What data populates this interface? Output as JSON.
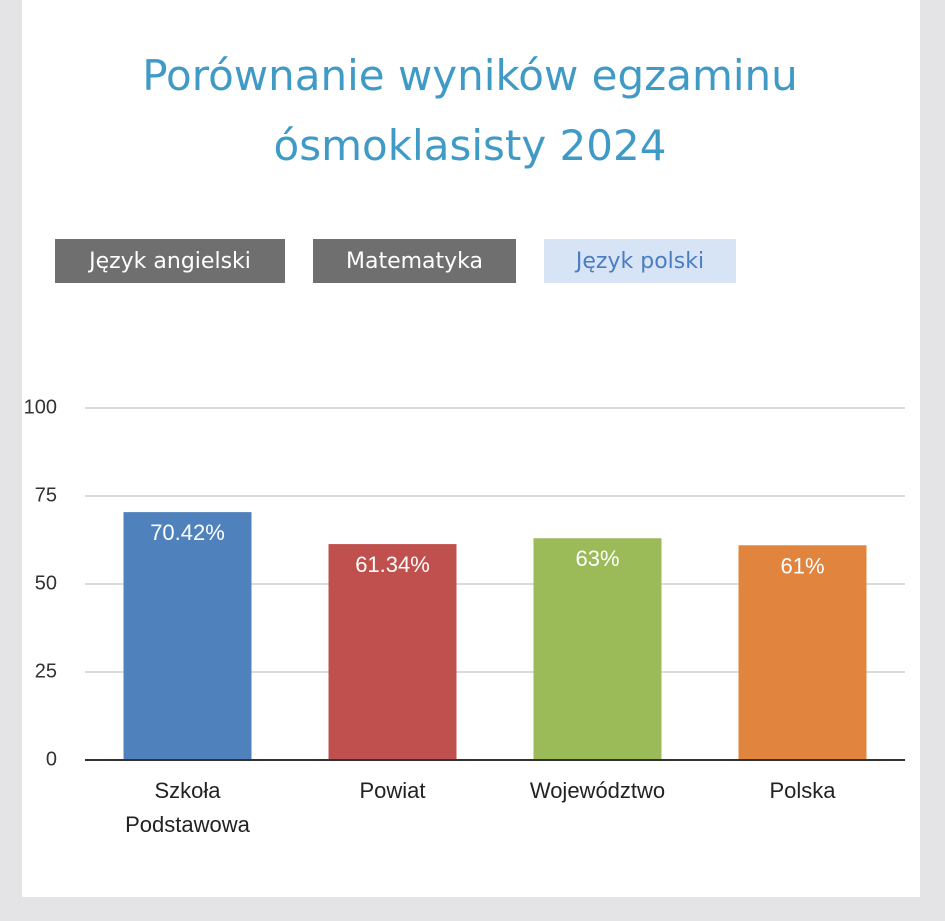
{
  "tabs": {
    "items": [
      "Język angielski",
      "Matematyka",
      "Język polski"
    ],
    "active": 2
  },
  "chart_data": {
    "type": "bar",
    "title": "Porównanie wyników egzaminu ósmoklasisty 2024",
    "categories": [
      "Szkoła Podstawowa",
      "Powiat",
      "Województwo",
      "Polska"
    ],
    "values": [
      70.42,
      61.34,
      63,
      61
    ],
    "value_labels": [
      "70.42%",
      "61.34%",
      "63%",
      "61%"
    ],
    "colors": [
      "#4f81bd",
      "#c0504d",
      "#9bbb59",
      "#e0843e"
    ],
    "ylim": [
      0,
      100
    ],
    "yticks": [
      0,
      25,
      50,
      75,
      100
    ],
    "grid": true
  }
}
